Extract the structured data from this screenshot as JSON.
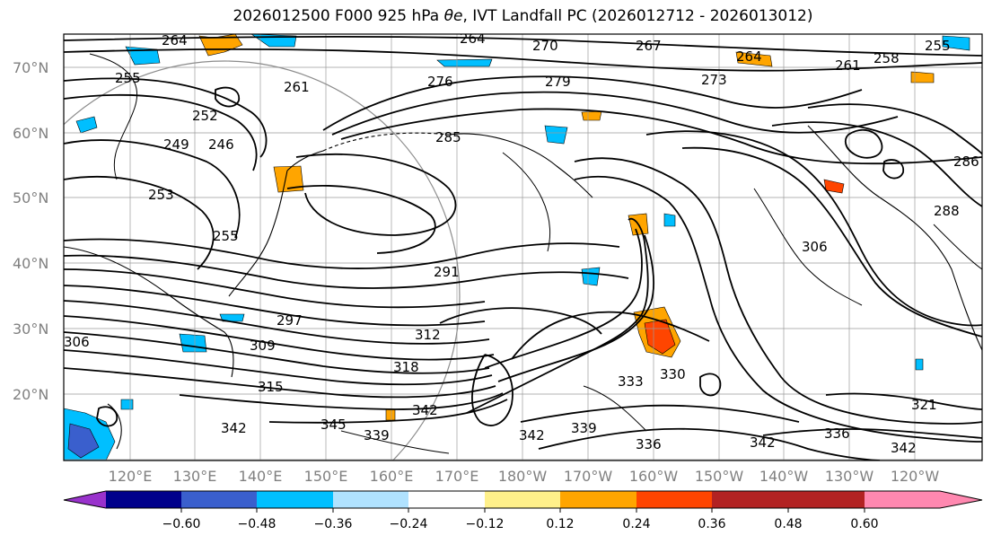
{
  "title_prefix": "2026012500 F000 925 hPa ",
  "title_var": "θe",
  "title_suffix": ", IVT Landfall PC (2026012712 - 2026013012)",
  "lat_labels": [
    "70°N",
    "60°N",
    "50°N",
    "40°N",
    "30°N",
    "20°N"
  ],
  "lon_labels": [
    "120°E",
    "130°E",
    "140°E",
    "150°E",
    "160°E",
    "170°E",
    "180°W",
    "170°W",
    "160°W",
    "150°W",
    "140°W",
    "130°W",
    "120°W"
  ],
  "colorbar": {
    "colors": [
      "#9932cc",
      "#00008b",
      "#3a5fcd",
      "#00bfff",
      "#b0e2ff",
      "#ffffff",
      "#fff08a",
      "#ffa500",
      "#ff4500",
      "#b22222",
      "#ff88b0"
    ],
    "tick_labels": [
      "−0.60",
      "−0.48",
      "−0.36",
      "−0.24",
      "−0.12",
      "0.12",
      "0.24",
      "0.36",
      "0.48",
      "0.60"
    ]
  },
  "contour_labels": [
    "264",
    "264",
    "270",
    "267",
    "264",
    "255",
    "258",
    "261",
    "255",
    "276",
    "279",
    "273",
    "261",
    "249",
    "252",
    "246",
    "285",
    "286",
    "253",
    "255",
    "291",
    "306",
    "288",
    "297",
    "309",
    "312",
    "306",
    "315",
    "318",
    "333",
    "330",
    "321",
    "342",
    "345",
    "339",
    "342",
    "339",
    "342",
    "336",
    "342",
    "336",
    "342"
  ]
}
